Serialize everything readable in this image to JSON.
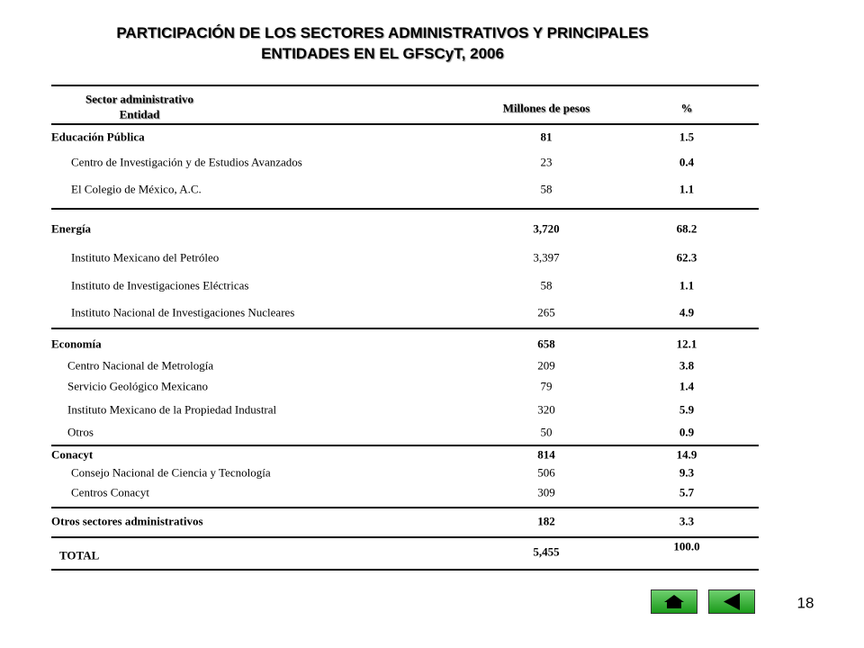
{
  "title": [
    "PARTICIPACIÓN DE LOS SECTORES ADMINISTRATIVOS Y PRINCIPALES",
    "ENTIDADES EN EL GFSCyT, 2006"
  ],
  "header": {
    "sector": "Sector administrativo",
    "entity": "Entidad",
    "amount": "Millones de pesos",
    "pct": "%"
  },
  "groups": [
    {
      "name": "Educación Pública",
      "value": "81",
      "pct": "1.5",
      "items": [
        {
          "name": "Centro de Investigación y de Estudios Avanzados",
          "value": "23",
          "pct": "0.4"
        },
        {
          "name": "El Colegio de México, A.C.",
          "value": "58",
          "pct": "1.1"
        }
      ]
    },
    {
      "name": "Energía",
      "value": "3,720",
      "pct": "68.2",
      "items": [
        {
          "name": "Instituto Mexicano del Petróleo",
          "value": "3,397",
          "pct": "62.3"
        },
        {
          "name": "Instituto de Investigaciones Eléctricas",
          "value": "58",
          "pct": "1.1"
        },
        {
          "name": "Instituto Nacional de Investigaciones Nucleares",
          "value": "265",
          "pct": "4.9"
        }
      ]
    },
    {
      "name": "Economía",
      "value": "658",
      "pct": "12.1",
      "items": [
        {
          "name": "Centro Nacional de Metrología",
          "value": "209",
          "pct": "3.8"
        },
        {
          "name": "Servicio Geológico Mexicano",
          "value": "79",
          "pct": "1.4"
        },
        {
          "name": "Instituto Mexicano de la Propiedad Industral",
          "value": "320",
          "pct": "5.9"
        },
        {
          "name": "Otros",
          "value": "50",
          "pct": "0.9"
        }
      ]
    },
    {
      "name": "Conacyt",
      "value": "814",
      "pct": "14.9",
      "items": [
        {
          "name": "Consejo Nacional de Ciencia y Tecnología",
          "value": "506",
          "pct": "9.3"
        },
        {
          "name": "Centros Conacyt",
          "value": "309",
          "pct": "5.7"
        }
      ]
    },
    {
      "name": "Otros sectores administrativos",
      "value": "182",
      "pct": "3.3",
      "items": []
    }
  ],
  "total": {
    "name": "TOTAL",
    "value": "5,455",
    "pct": "100.0"
  },
  "page_number": "18"
}
